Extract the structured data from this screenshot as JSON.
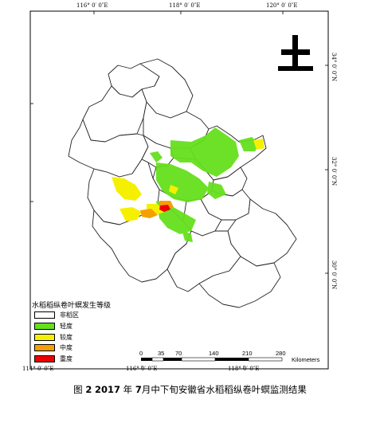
{
  "coords": {
    "top": [
      "116° 0′ 0″E",
      "118° 0′ 0″E",
      "120° 0′ 0″E"
    ],
    "bottom": [
      "114° 0′ 0″E",
      "116° 0′ 0″E",
      "118° 0′ 0″E"
    ],
    "right": [
      "34° 0′ 0″N",
      "32° 0′ 0″N",
      "30° 0′ 0″N"
    ]
  },
  "legend": {
    "title": "水稻稻纵卷叶螟发生等级",
    "items": [
      {
        "label": "非稻区",
        "color": "#ffffff"
      },
      {
        "label": "轻度",
        "color": "#66e01c"
      },
      {
        "label": "较度",
        "color": "#f5f000"
      },
      {
        "label": "中度",
        "color": "#f5a000"
      },
      {
        "label": "重度",
        "color": "#ee0000"
      }
    ]
  },
  "scale": {
    "ticks": [
      "0",
      "35",
      "70",
      "140",
      "210",
      "280"
    ],
    "unit": "Kilometers"
  },
  "caption": {
    "prefix": "图",
    "figure_no": "2",
    "year": "2017",
    "year_suffix": "年",
    "month": "7",
    "rest": "月中下旬安徽省水稻稻纵卷叶螟监测结果"
  }
}
